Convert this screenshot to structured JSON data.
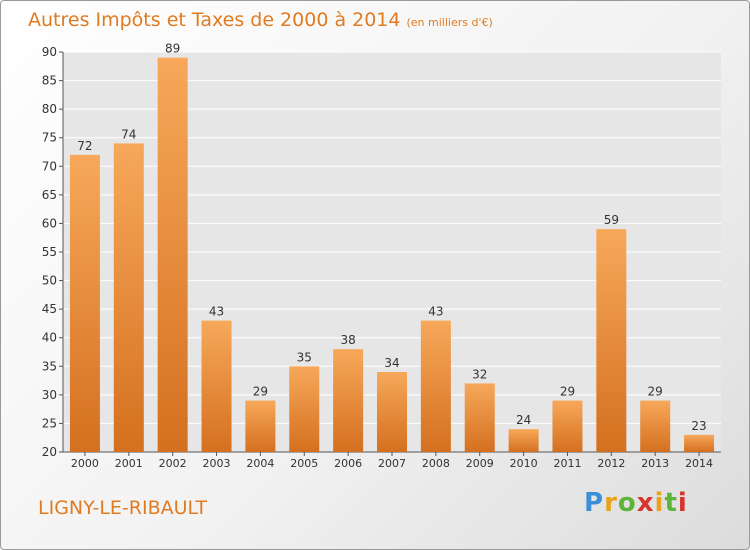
{
  "title": "Autres Impôts et Taxes de 2000 à 2014",
  "unit_note": "(en milliers d'€)",
  "commune": "LIGNY-LE-RIBAULT",
  "logo": {
    "letters": [
      "P",
      "r",
      "o",
      "x",
      "i",
      "t",
      "i"
    ],
    "colors": [
      "#3a8fd6",
      "#e8a21c",
      "#5fb33a",
      "#d8342c",
      "#e8a21c",
      "#5fb33a",
      "#d8342c"
    ]
  },
  "colors": {
    "bar_light": "#f7a85a",
    "bar_dark": "#d4701f",
    "text": "#e07b20"
  },
  "chart_data": {
    "type": "bar",
    "title": "Autres Impôts et Taxes de 2000 à 2014",
    "categories": [
      "2000",
      "2001",
      "2002",
      "2003",
      "2004",
      "2005",
      "2006",
      "2007",
      "2008",
      "2009",
      "2010",
      "2011",
      "2012",
      "2013",
      "2014"
    ],
    "values": [
      72,
      74,
      89,
      43,
      29,
      35,
      38,
      34,
      43,
      32,
      24,
      29,
      59,
      29,
      23
    ],
    "ylim": [
      20,
      90
    ],
    "yticks": [
      20,
      25,
      30,
      35,
      40,
      45,
      50,
      55,
      60,
      65,
      70,
      75,
      80,
      85,
      90
    ],
    "grid": true
  }
}
